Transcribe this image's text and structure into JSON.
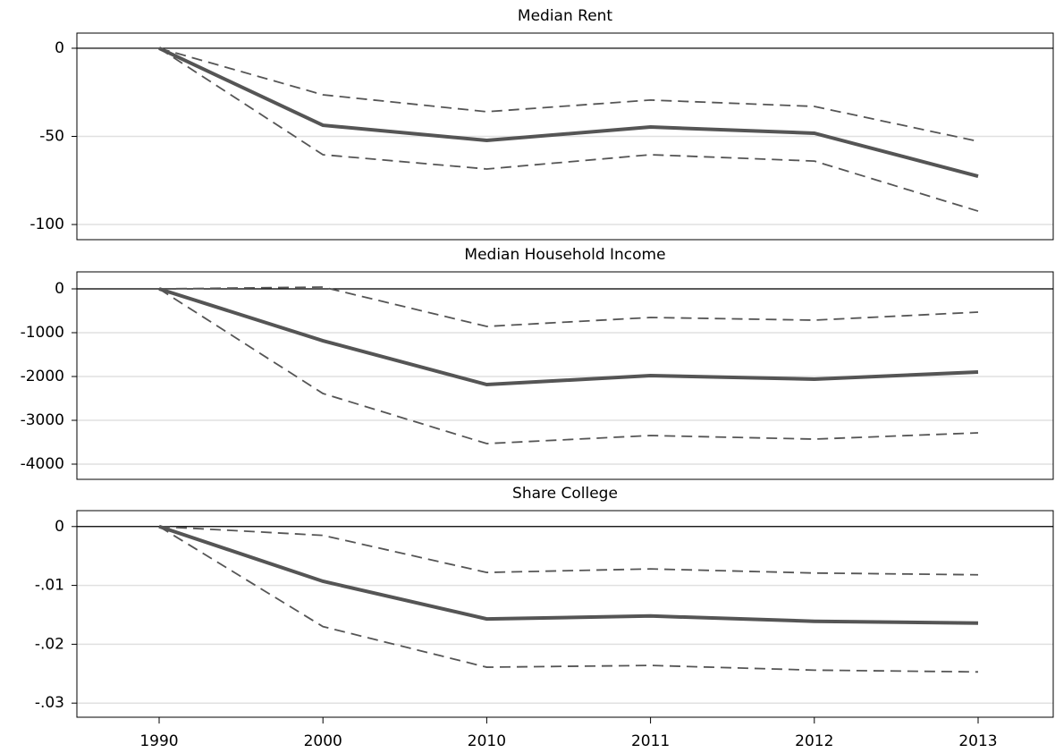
{
  "chart_data": [
    {
      "type": "line",
      "title": "Median Rent",
      "ylim": [
        -108.6,
        8.6
      ],
      "yticks": [
        0,
        -50,
        -100
      ],
      "grid": true,
      "hline": 0,
      "series": [
        {
          "color": "#555555",
          "style": "solid",
          "values": [
            0,
            -43.7,
            -52.3,
            -44.7,
            -48.2,
            -72.6
          ]
        },
        {
          "color": "#555555",
          "style": "dashed",
          "values": [
            0,
            -26.4,
            -36,
            -29.4,
            -33,
            -52.8
          ]
        },
        {
          "color": "#555555",
          "style": "dashed",
          "values": [
            0,
            -60.4,
            -68.5,
            -60.4,
            -64,
            -92.4
          ]
        }
      ]
    },
    {
      "type": "line",
      "title": "Median Household Income",
      "ylim": [
        -4347,
        388
      ],
      "yticks": [
        0,
        -1000,
        -2000,
        -3000,
        -4000
      ],
      "grid": true,
      "hline": 0,
      "series": [
        {
          "color": "#555555",
          "style": "solid",
          "values": [
            0,
            -1184,
            -2184,
            -1980,
            -2061,
            -1898
          ]
        },
        {
          "color": "#555555",
          "style": "dashed",
          "values": [
            0,
            41,
            -857,
            -653,
            -714,
            -531
          ]
        },
        {
          "color": "#555555",
          "style": "dashed",
          "values": [
            0,
            -2388,
            -3531,
            -3347,
            -3429,
            -3286
          ]
        }
      ]
    },
    {
      "type": "line",
      "title": "Share College",
      "ylim": [
        -0.0324,
        0.0027
      ],
      "yticks": [
        0,
        {
          "value": -0.01,
          "label": "-.01"
        },
        {
          "value": -0.02,
          "label": "-.02"
        },
        {
          "value": -0.03,
          "label": "-.03"
        }
      ],
      "grid": true,
      "hline": 0,
      "categories": [
        "1990",
        "2000",
        "2010",
        "2011",
        "2012",
        "2013"
      ],
      "series": [
        {
          "color": "#555555",
          "style": "solid",
          "values": [
            0,
            -0.0093,
            -0.0157,
            -0.0152,
            -0.0161,
            -0.0164
          ]
        },
        {
          "color": "#555555",
          "style": "dashed",
          "values": [
            0,
            -0.0015,
            -0.0078,
            -0.0072,
            -0.0079,
            -0.0082
          ]
        },
        {
          "color": "#555555",
          "style": "dashed",
          "values": [
            0,
            -0.017,
            -0.0239,
            -0.0236,
            -0.0244,
            -0.0247
          ]
        }
      ]
    }
  ]
}
